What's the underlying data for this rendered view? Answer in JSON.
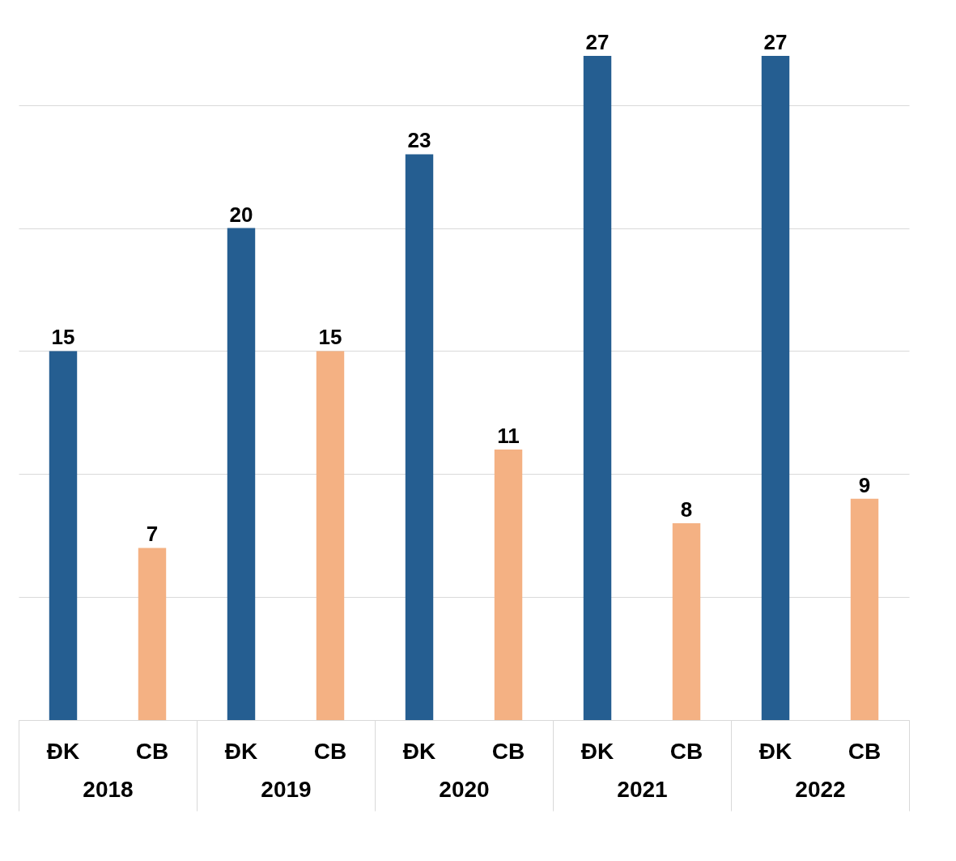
{
  "chart_data": {
    "type": "bar",
    "categories": [
      "2018",
      "2019",
      "2020",
      "2021",
      "2022"
    ],
    "series": [
      {
        "name": "ĐK",
        "color": "#255e91",
        "values": [
          15,
          20,
          23,
          27,
          27
        ]
      },
      {
        "name": "CB",
        "color": "#f4b183",
        "values": [
          7,
          15,
          11,
          8,
          9
        ]
      }
    ],
    "yticks": [
      {
        "value": 0,
        "label": null
      },
      {
        "value": 5,
        "label": null
      },
      {
        "value": 10,
        "label": null
      },
      {
        "value": 15,
        "label": null
      },
      {
        "value": 20,
        "label": null
      },
      {
        "value": 25,
        "label": null
      }
    ],
    "tick_labels": "x",
    "grid": "y",
    "data_labels": true
  }
}
